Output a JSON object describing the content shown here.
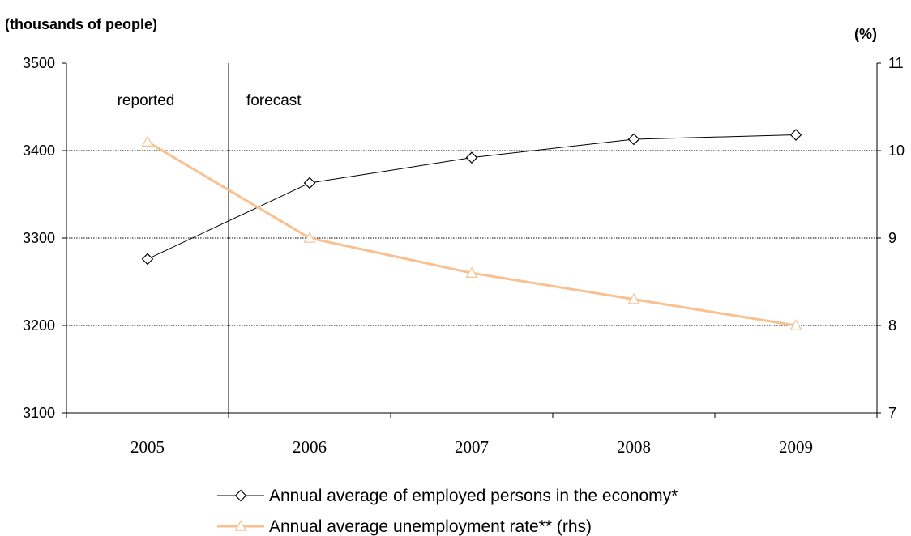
{
  "units": {
    "left": "(thousands of people)",
    "right": "(%)"
  },
  "annotations": {
    "reported": "reported",
    "forecast": "forecast"
  },
  "chart_data": {
    "type": "line",
    "categories": [
      "2005",
      "2006",
      "2007",
      "2008",
      "2009"
    ],
    "y_left": {
      "range": [
        3100,
        3500
      ],
      "ticks": [
        "3100",
        "3200",
        "3300",
        "3400",
        "3500"
      ]
    },
    "y_right": {
      "range": [
        7,
        11
      ],
      "ticks": [
        "7",
        "8",
        "9",
        "10",
        "11"
      ]
    },
    "grid": true,
    "legend_position": "bottom-center",
    "series": [
      {
        "name": "Annual average of employed persons in the economy*",
        "axis": "left",
        "marker": "diamond",
        "color": "#000000",
        "values": [
          3276,
          3363,
          3392,
          3413,
          3418
        ]
      },
      {
        "name": "Annual average unemployment rate** (rhs)",
        "axis": "right",
        "marker": "triangle",
        "color": "#FAC090",
        "values": [
          10.1,
          9.0,
          8.6,
          8.3,
          8.0
        ]
      }
    ]
  }
}
